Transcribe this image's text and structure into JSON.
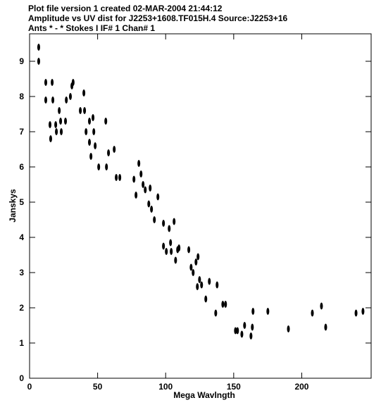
{
  "chart_data": {
    "type": "scatter",
    "title_lines": [
      "Plot file version 1  created 02-MAR-2004 21:44:12",
      "Amplitude vs UV dist for J2253+1608.TF015H.4   Source:J2253+16",
      "Ants * - *    Stokes I  IF# 1  Chan# 1"
    ],
    "x_label": "Mega Wavlngth",
    "y_label": "Janskys",
    "color": "#000000",
    "xlim": [
      0,
      251
    ],
    "ylim": [
      0,
      9.78
    ],
    "xticks": [
      0,
      50,
      100,
      150,
      200
    ],
    "yticks": [
      0,
      1,
      2,
      3,
      4,
      5,
      6,
      7,
      8,
      9
    ],
    "x": [
      6.7,
      6.7,
      11.9,
      11.9,
      16.6,
      17.1,
      15.5,
      15.0,
      19.2,
      19.7,
      21.8,
      22.8,
      23.3,
      27.0,
      26.4,
      30.0,
      31.1,
      32.0,
      37.3,
      39.9,
      40.4,
      41.5,
      44.0,
      45.1,
      44.0,
      46.6,
      47.2,
      48.2,
      50.8,
      56.5,
      56.0,
      58.0,
      62.2,
      63.7,
      66.3,
      76.7,
      78.2,
      80.3,
      81.9,
      83.4,
      85.0,
      87.6,
      89.6,
      88.6,
      94.3,
      91.7,
      98.4,
      98.4,
      100.5,
      102.6,
      103.6,
      104.1,
      106.2,
      107.3,
      108.8,
      109.8,
      117.0,
      118.7,
      120.2,
      122.3,
      123.8,
      124.9,
      126.4,
      123.3,
      129.5,
      132.1,
      136.8,
      137.8,
      142.0,
      144.0,
      151.3,
      152.8,
      156.0,
      158.0,
      162.7,
      163.7,
      164.2,
      175.1,
      190.2,
      207.8,
      214.5,
      217.6,
      239.9,
      245.0
    ],
    "values": [
      9.4,
      9.0,
      8.4,
      7.9,
      8.4,
      7.9,
      6.8,
      7.2,
      7.2,
      7.0,
      7.6,
      7.3,
      7.0,
      7.9,
      7.3,
      8.0,
      8.3,
      8.4,
      7.6,
      8.1,
      7.6,
      7.0,
      7.3,
      6.3,
      6.7,
      7.4,
      7.0,
      6.6,
      6.0,
      6.0,
      7.3,
      6.4,
      6.5,
      5.7,
      5.7,
      5.65,
      5.2,
      6.1,
      5.8,
      5.5,
      5.35,
      4.95,
      4.8,
      5.4,
      5.15,
      4.5,
      4.4,
      3.75,
      3.6,
      4.25,
      3.85,
      3.6,
      4.45,
      3.35,
      3.65,
      3.7,
      3.65,
      3.15,
      3.0,
      3.3,
      3.45,
      2.8,
      2.65,
      2.6,
      2.25,
      2.75,
      1.85,
      2.65,
      2.1,
      2.1,
      1.35,
      1.35,
      1.25,
      1.5,
      1.2,
      1.45,
      1.9,
      1.9,
      1.4,
      1.85,
      2.05,
      1.45,
      1.85,
      1.9
    ]
  }
}
